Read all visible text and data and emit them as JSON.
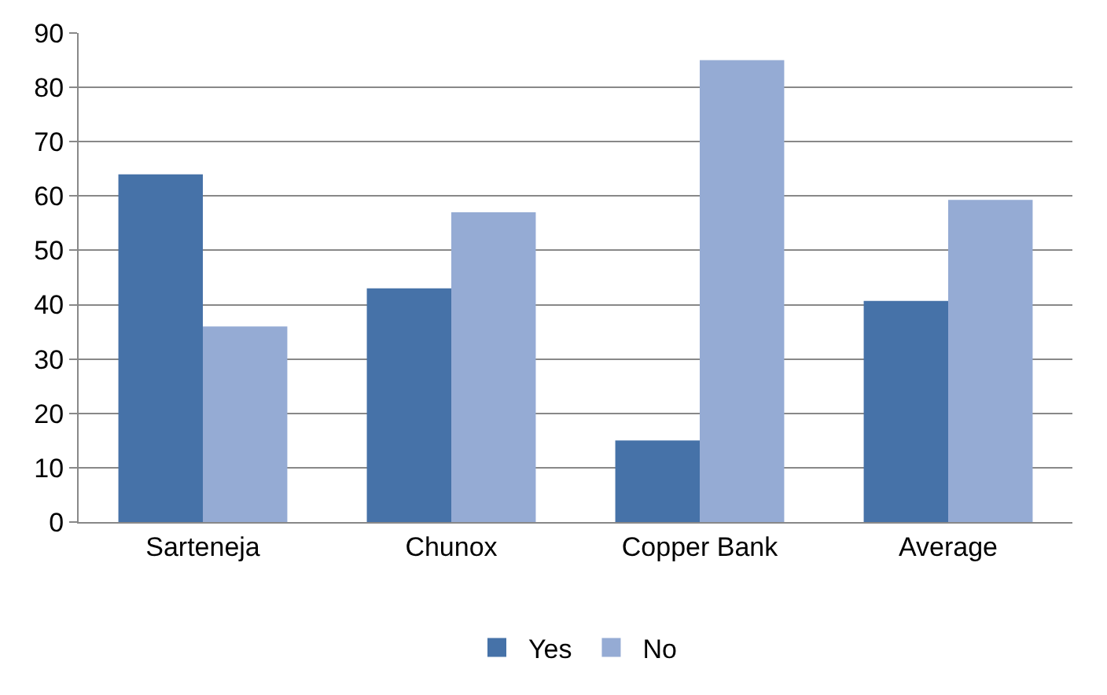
{
  "chart_data": {
    "type": "bar",
    "categories": [
      "Sarteneja",
      "Chunox",
      "Copper Bank",
      "Average"
    ],
    "series": [
      {
        "name": "Yes",
        "color": "#4672a8",
        "values": [
          64,
          43,
          15,
          40.7
        ]
      },
      {
        "name": "No",
        "color": "#95abd4",
        "values": [
          36,
          57,
          85,
          59.3
        ]
      }
    ],
    "ylim": [
      0,
      90
    ],
    "yticks": [
      0,
      10,
      20,
      30,
      40,
      50,
      60,
      70,
      80,
      90
    ],
    "grid": "y",
    "legend": "bottom"
  }
}
